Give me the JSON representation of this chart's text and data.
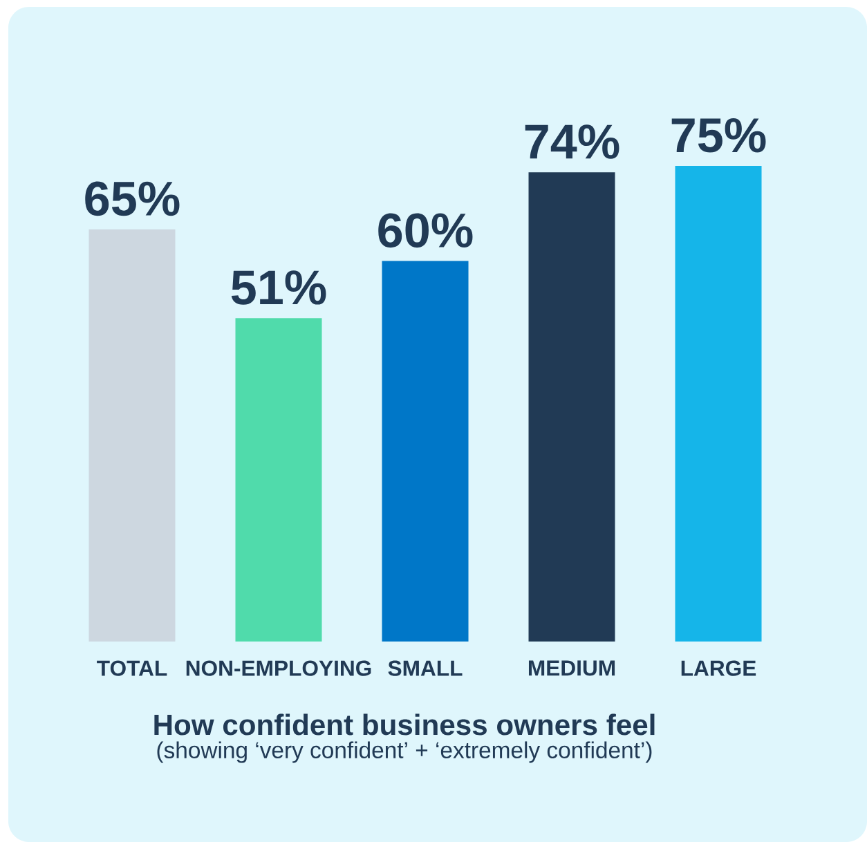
{
  "chart_data": {
    "type": "bar",
    "title": "How confident business owners feel",
    "subtitle": "(showing ‘very confident’ + ‘extremely confident’)",
    "categories": [
      "TOTAL",
      "NON-EMPLOYING",
      "SMALL",
      "MEDIUM",
      "LARGE"
    ],
    "values": [
      65,
      51,
      60,
      74,
      75
    ],
    "value_labels": [
      "65%",
      "51%",
      "60%",
      "74%",
      "75%"
    ],
    "colors": [
      "#cdd7e0",
      "#50dbab",
      "#0077c8",
      "#213a55",
      "#15b5e9"
    ],
    "tick_labels": "x"
  }
}
